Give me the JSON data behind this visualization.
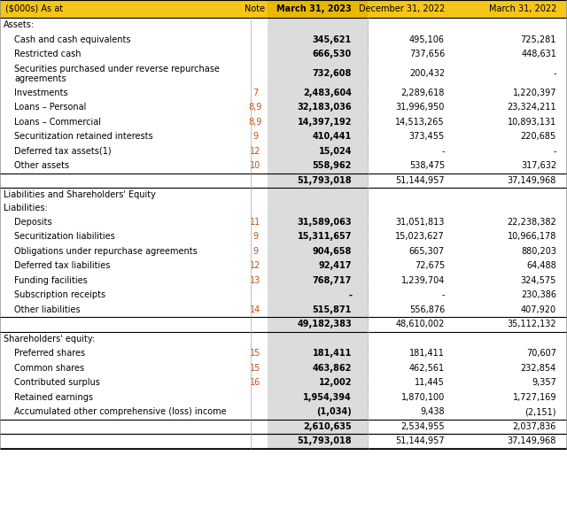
{
  "header_bg": "#F5C518",
  "header_text_color": "#000000",
  "note_color": "#C05010",
  "col1_header": "($000s) As at",
  "col2_header": "Note",
  "col3_header": "March 31, 2023",
  "col4_header": "December 31, 2022",
  "col5_header": "March 31, 2022",
  "col3_bg": "#DCDCDC",
  "row_bg": "#FFFFFF",
  "border_color": "#000000",
  "sep_color": "#AAAAAA",
  "rows": [
    {
      "label": "Assets:",
      "note": "",
      "col3": "",
      "col4": "",
      "col5": "",
      "type": "section_header",
      "indent": 0
    },
    {
      "label": "Cash and cash equivalents",
      "note": "",
      "col3": "345,621",
      "col4": "495,106",
      "col5": "725,281",
      "type": "data",
      "indent": 1
    },
    {
      "label": "Restricted cash",
      "note": "",
      "col3": "666,530",
      "col4": "737,656",
      "col5": "448,631",
      "type": "data",
      "indent": 1
    },
    {
      "label": "Securities purchased under reverse repurchase",
      "note": "",
      "col3": "732,608",
      "col4": "200,432",
      "col5": "-",
      "type": "data_multiline",
      "indent": 1,
      "label2": "agreements"
    },
    {
      "label": "Investments",
      "note": "7",
      "col3": "2,483,604",
      "col4": "2,289,618",
      "col5": "1,220,397",
      "type": "data",
      "indent": 1
    },
    {
      "label": "Loans – Personal",
      "note": "8,9",
      "col3": "32,183,036",
      "col4": "31,996,950",
      "col5": "23,324,211",
      "type": "data",
      "indent": 1
    },
    {
      "label": "Loans – Commercial",
      "note": "8,9",
      "col3": "14,397,192",
      "col4": "14,513,265",
      "col5": "10,893,131",
      "type": "data",
      "indent": 1
    },
    {
      "label": "Securitization retained interests",
      "note": "9",
      "col3": "410,441",
      "col4": "373,455",
      "col5": "220,685",
      "type": "data",
      "indent": 1
    },
    {
      "label": "Deferred tax assets(1)",
      "note": "12",
      "col3": "15,024",
      "col4": "-",
      "col5": "-",
      "type": "data",
      "indent": 1,
      "superscript": true
    },
    {
      "label": "Other assets",
      "note": "10",
      "col3": "558,962",
      "col4": "538,475",
      "col5": "317,632",
      "type": "data",
      "indent": 1
    },
    {
      "label": "",
      "note": "",
      "col3": "51,793,018",
      "col4": "51,144,957",
      "col5": "37,149,968",
      "type": "subtotal",
      "indent": 0
    },
    {
      "label": "Liabilities and Shareholders' Equity",
      "note": "",
      "col3": "",
      "col4": "",
      "col5": "",
      "type": "section_header",
      "indent": 0
    },
    {
      "label": "Liabilities:",
      "note": "",
      "col3": "",
      "col4": "",
      "col5": "",
      "type": "section_header2",
      "indent": 0
    },
    {
      "label": "Deposits",
      "note": "11",
      "col3": "31,589,063",
      "col4": "31,051,813",
      "col5": "22,238,382",
      "type": "data",
      "indent": 1
    },
    {
      "label": "Securitization liabilities",
      "note": "9",
      "col3": "15,311,657",
      "col4": "15,023,627",
      "col5": "10,966,178",
      "type": "data",
      "indent": 1
    },
    {
      "label": "Obligations under repurchase agreements",
      "note": "9",
      "col3": "904,658",
      "col4": "665,307",
      "col5": "880,203",
      "type": "data",
      "indent": 1
    },
    {
      "label": "Deferred tax liabilities",
      "note": "12",
      "col3": "92,417",
      "col4": "72,675",
      "col5": "64,488",
      "type": "data",
      "indent": 1
    },
    {
      "label": "Funding facilities",
      "note": "13",
      "col3": "768,717",
      "col4": "1,239,704",
      "col5": "324,575",
      "type": "data",
      "indent": 1
    },
    {
      "label": "Subscription receipts",
      "note": "",
      "col3": "-",
      "col4": "-",
      "col5": "230,386",
      "type": "data",
      "indent": 1
    },
    {
      "label": "Other liabilities",
      "note": "14",
      "col3": "515,871",
      "col4": "556,876",
      "col5": "407,920",
      "type": "data",
      "indent": 1
    },
    {
      "label": "",
      "note": "",
      "col3": "49,182,383",
      "col4": "48,610,002",
      "col5": "35,112,132",
      "type": "subtotal",
      "indent": 0
    },
    {
      "label": "Shareholders' equity:",
      "note": "",
      "col3": "",
      "col4": "",
      "col5": "",
      "type": "section_header",
      "indent": 0
    },
    {
      "label": "Preferred shares",
      "note": "15",
      "col3": "181,411",
      "col4": "181,411",
      "col5": "70,607",
      "type": "data",
      "indent": 1
    },
    {
      "label": "Common shares",
      "note": "15",
      "col3": "463,862",
      "col4": "462,561",
      "col5": "232,854",
      "type": "data",
      "indent": 1
    },
    {
      "label": "Contributed surplus",
      "note": "16",
      "col3": "12,002",
      "col4": "11,445",
      "col5": "9,357",
      "type": "data",
      "indent": 1
    },
    {
      "label": "Retained earnings",
      "note": "",
      "col3": "1,954,394",
      "col4": "1,870,100",
      "col5": "1,727,169",
      "type": "data",
      "indent": 1
    },
    {
      "label": "Accumulated other comprehensive (loss) income",
      "note": "",
      "col3": "(1,034)",
      "col4": "9,438",
      "col5": "(2,151)",
      "type": "data",
      "indent": 1
    },
    {
      "label": "",
      "note": "",
      "col3": "2,610,635",
      "col4": "2,534,955",
      "col5": "2,037,836",
      "type": "subtotal",
      "indent": 0
    },
    {
      "label": "",
      "note": "",
      "col3": "51,793,018",
      "col4": "51,144,957",
      "col5": "37,149,968",
      "type": "total",
      "indent": 0
    }
  ],
  "figsize": [
    6.4,
    5.84
  ],
  "dpi": 100
}
